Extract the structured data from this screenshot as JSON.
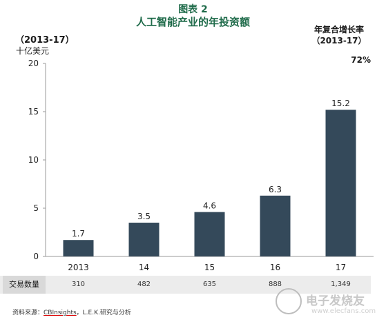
{
  "figure": {
    "label": "图表 2",
    "title": "人工智能产业的年投资额",
    "period": "（2013-17）",
    "unit": "十亿美元",
    "cagr_label_line1": "年复合增长率",
    "cagr_label_line2": "（2013-17）",
    "cagr_value": "72%"
  },
  "chart_data": {
    "type": "bar",
    "title": "人工智能产业的年投资额",
    "ylabel": "十亿美元",
    "xlabel": "",
    "categories": [
      "2013",
      "14",
      "15",
      "16",
      "17"
    ],
    "values": [
      1.7,
      3.5,
      4.6,
      6.3,
      15.2
    ],
    "data_labels": [
      "1.7",
      "3.5",
      "4.6",
      "6.3",
      "15.2"
    ],
    "ylim": [
      0,
      20
    ],
    "yticks": [
      "0",
      "5",
      "10",
      "15",
      "20"
    ],
    "grid": false,
    "bar_color": "#34495a"
  },
  "deal_table": {
    "header": "交易数量",
    "values": [
      "310",
      "482",
      "635",
      "888",
      "1,349"
    ]
  },
  "source": {
    "prefix": "资料来源：",
    "name1": "CBInsights",
    "rest": "，L.E.K.研究与分析"
  },
  "watermark": {
    "text": "电子发烧友",
    "url": "www.elecfans.com"
  }
}
